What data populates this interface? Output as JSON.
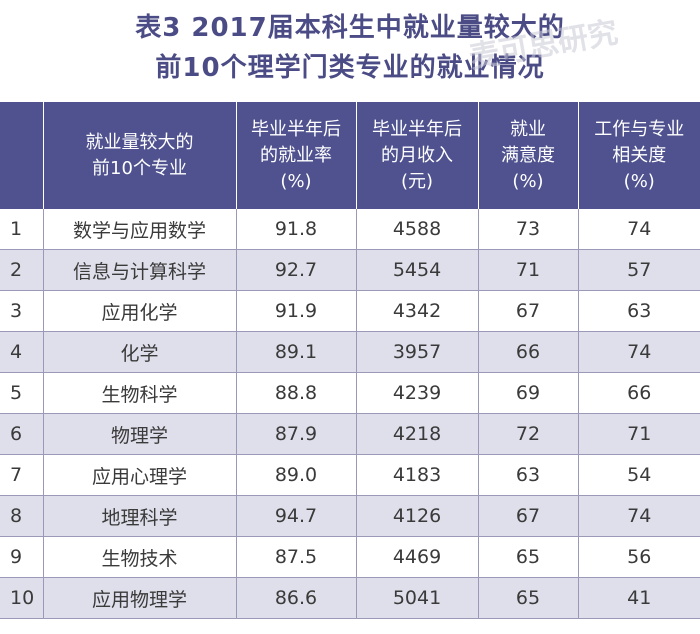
{
  "title": {
    "line1": "表3 2017届本科生中就业量较大的",
    "line2": "前10个理学门类专业的就业情况"
  },
  "watermark": {
    "text": "麦可思研究"
  },
  "table": {
    "headers": [
      {
        "lines": [
          ""
        ]
      },
      {
        "lines": [
          "就业量较大的",
          "前10个专业"
        ]
      },
      {
        "lines": [
          "毕业半年后",
          "的就业率",
          "(%)"
        ]
      },
      {
        "lines": [
          "毕业半年后",
          "的月收入",
          "(元)"
        ]
      },
      {
        "lines": [
          "就业",
          "满意度",
          "(%)"
        ]
      },
      {
        "lines": [
          "工作与专业",
          "相关度",
          "(%)"
        ]
      }
    ],
    "rows": [
      {
        "rank": "1",
        "major": "数学与应用数学",
        "employment_rate": "91.8",
        "monthly_income": "4588",
        "satisfaction": "73",
        "relevance": "74"
      },
      {
        "rank": "2",
        "major": "信息与计算科学",
        "employment_rate": "92.7",
        "monthly_income": "5454",
        "satisfaction": "71",
        "relevance": "57"
      },
      {
        "rank": "3",
        "major": "应用化学",
        "employment_rate": "91.9",
        "monthly_income": "4342",
        "satisfaction": "67",
        "relevance": "63"
      },
      {
        "rank": "4",
        "major": "化学",
        "employment_rate": "89.1",
        "monthly_income": "3957",
        "satisfaction": "66",
        "relevance": "74"
      },
      {
        "rank": "5",
        "major": "生物科学",
        "employment_rate": "88.8",
        "monthly_income": "4239",
        "satisfaction": "69",
        "relevance": "66"
      },
      {
        "rank": "6",
        "major": "物理学",
        "employment_rate": "87.9",
        "monthly_income": "4218",
        "satisfaction": "72",
        "relevance": "71"
      },
      {
        "rank": "7",
        "major": "应用心理学",
        "employment_rate": "89.0",
        "monthly_income": "4183",
        "satisfaction": "63",
        "relevance": "54"
      },
      {
        "rank": "8",
        "major": "地理科学",
        "employment_rate": "94.7",
        "monthly_income": "4126",
        "satisfaction": "67",
        "relevance": "74"
      },
      {
        "rank": "9",
        "major": "生物技术",
        "employment_rate": "87.5",
        "monthly_income": "4469",
        "satisfaction": "65",
        "relevance": "56"
      },
      {
        "rank": "10",
        "major": "应用物理学",
        "employment_rate": "86.6",
        "monthly_income": "5041",
        "satisfaction": "65",
        "relevance": "41"
      }
    ]
  },
  "colors": {
    "header_bg": "#4f528f",
    "title_text": "#4b4b86",
    "stripe_bg": "#dedfea"
  }
}
